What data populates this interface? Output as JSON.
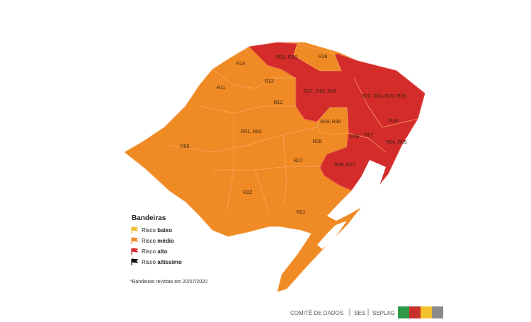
{
  "map": {
    "regions": [
      "R14",
      "R15, R20",
      "R16",
      "R11",
      "R13",
      "R17, R18, R19",
      "R23, R24, R25, R26",
      "R12",
      "R01, R02",
      "R29, R30",
      "R06",
      "R03",
      "R08",
      "R07",
      "R28",
      "R04, R05",
      "R09, R10",
      "R27",
      "R22",
      "R21"
    ]
  },
  "legend": {
    "title": "Bandeiras",
    "items": [
      {
        "text": "Risco",
        "emphasis": "baixo",
        "color": "#f3c12f"
      },
      {
        "text": "Risco",
        "emphasis": "médio",
        "color": "#f08a24"
      },
      {
        "text": "Risco",
        "emphasis": "alto",
        "color": "#d42b2b"
      },
      {
        "text": "Risco",
        "emphasis": "altíssimo",
        "color": "#111111"
      }
    ],
    "note": "*Bandeiras revistas em 20/07/2020"
  },
  "footer": [
    "COMITÊ DE DADOS",
    "SES",
    "SEPLAG"
  ]
}
